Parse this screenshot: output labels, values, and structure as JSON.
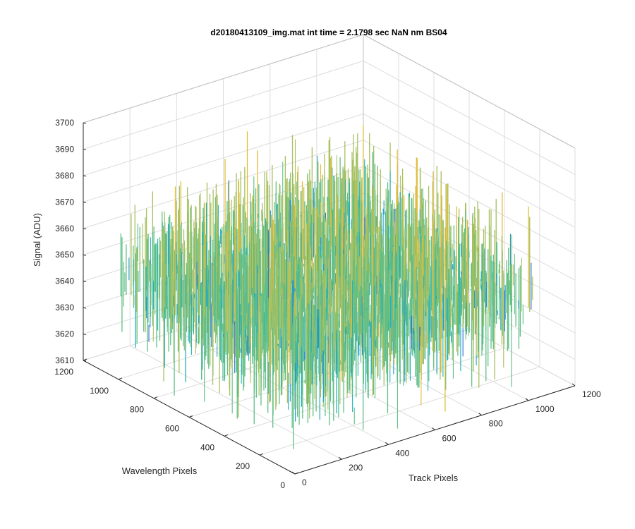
{
  "chart_data": {
    "type": "surface-3d",
    "title": "d20180413109_img.mat int time = 2.1798 sec  NaN nm BS04",
    "xlabel": "Track Pixels",
    "ylabel": "Wavelength Pixels",
    "zlabel": "Signal (ADU)",
    "xlim": [
      0,
      1200
    ],
    "ylim": [
      0,
      1200
    ],
    "zlim": [
      3610,
      3700
    ],
    "xticks": [
      "0",
      "200",
      "400",
      "600",
      "800",
      "1000",
      "1200"
    ],
    "yticks": [
      "0",
      "200",
      "400",
      "600",
      "800",
      "1000",
      "1200"
    ],
    "zticks": [
      "3610",
      "3620",
      "3630",
      "3640",
      "3650",
      "3660",
      "3670",
      "3680",
      "3690",
      "3700"
    ],
    "data_extent": {
      "x": [
        0,
        1030
      ],
      "y": [
        0,
        1030
      ]
    },
    "signal": {
      "mean": 3650,
      "typical_range": [
        3615,
        3695
      ]
    },
    "colormap": [
      "#2e6fd6",
      "#1e9ad0",
      "#22b0b8",
      "#5fbf86",
      "#a8c060",
      "#e0bb3a"
    ],
    "grid": true
  }
}
